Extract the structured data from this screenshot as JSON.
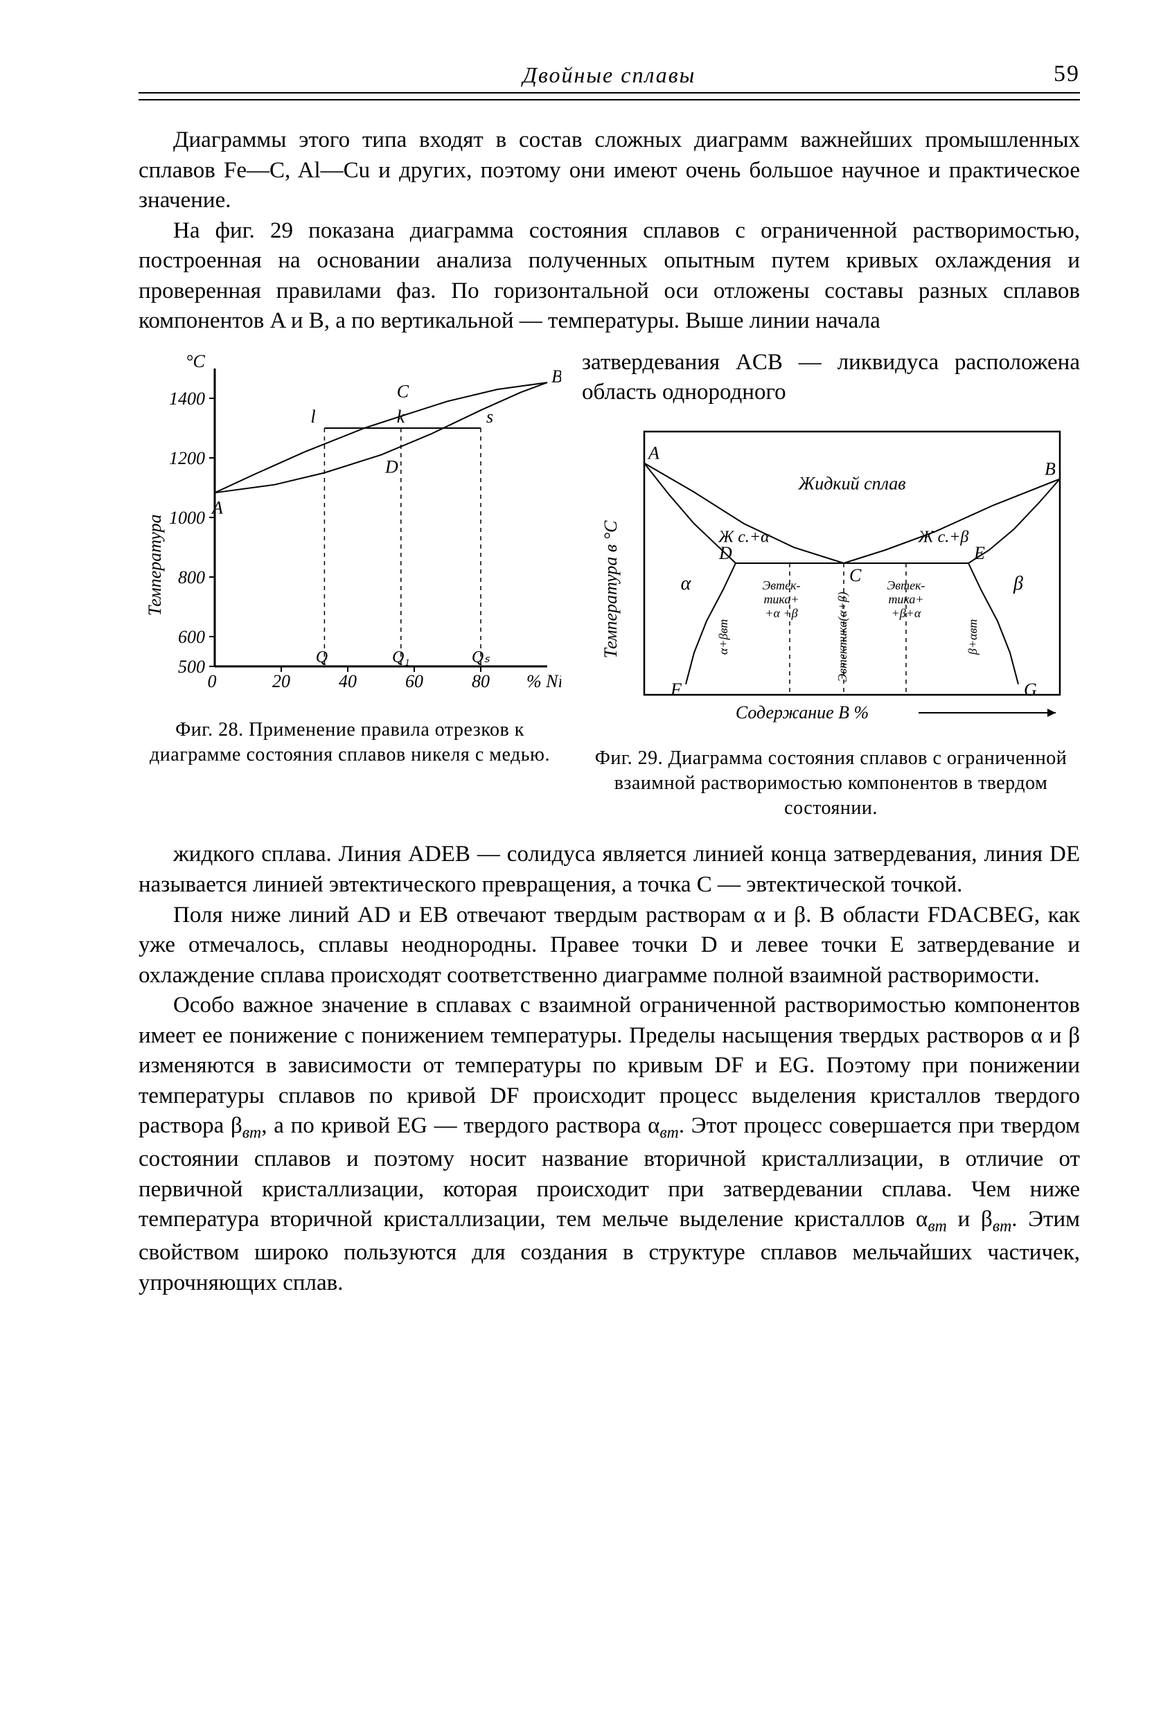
{
  "page": {
    "running_head": "Двойные сплавы",
    "number": "59"
  },
  "paragraphs": {
    "p1": "Диаграммы этого типа входят в состав сложных диаграмм важнейших промышленных сплавов Fe—C, Al—Cu и других, поэтому они имеют очень большое научное и практическое значение.",
    "p2": "На фиг. 29 показана диаграмма состояния сплавов с ограниченной растворимостью, построенная на основании анализа полученных опытным путем кривых охлаждения и проверенная правилами фаз. По горизонтальной оси отложены составы разных сплавов компонентов A и B, а по вертикальной — температуры. Выше линии начала",
    "side1": "затвердевания ACB — ликвидуса расположена область однородного",
    "p3a": "жидкого сплава. Линия ADEB — солидуса является линией конца затвердевания, линия DE называется линией эвтектического превращения, а точка C — эвтектической точкой.",
    "p3b": "Поля ниже линий AD и EB отвечают твердым растворам α и β. В области FDACBEG, как уже отмечалось, сплавы неоднородны. Правее точки D и левее точки E затвердевание и охлаждение сплава происходят соответственно диаграмме полной взаимной растворимости.",
    "p4_part1": "Особо важное значение в сплавах с взаимной ограниченной растворимостью компонентов имеет ее понижение с понижением температуры. Пределы насыщения твердых растворов α и β изменяются в зависимости от температуры по кривым DF и EG. Поэтому при понижении температуры сплавов по кривой DF происходит процесс выделения кристаллов твердого раствора β",
    "p4_part2": ", а по кривой EG — твердого раствора α",
    "p4_part3": ". Этот процесс совершается при твердом состоянии сплавов и поэтому носит название вторичной кристаллизации, в отличие от первичной кристаллизации, которая происходит при затвердевании сплава. Чем ниже температура вторичной кристаллизации, тем мельче выделение кристаллов α",
    "p4_part4": " и β",
    "p4_part5": ". Этим свойством широко пользуются для создания в структуре сплавов мельчайших частичек, упрочняющих сплав.",
    "sub_vt": "вт"
  },
  "fig28": {
    "caption": "Фиг. 28. Применение правила отрезков к диаграмме состояния сплавов никеля с медью.",
    "y_label": "Температура",
    "y_unit": "°C",
    "x_label": "% Ni",
    "y_ticks": [
      500,
      600,
      800,
      1000,
      1200,
      1400
    ],
    "x_ticks": [
      0,
      20,
      40,
      60,
      80
    ],
    "x_range": [
      0,
      100
    ],
    "y_range": [
      500,
      1500
    ],
    "liquidus": [
      [
        0,
        1083
      ],
      [
        12,
        1145
      ],
      [
        27,
        1220
      ],
      [
        45,
        1300
      ],
      [
        56,
        1340
      ],
      [
        70,
        1390
      ],
      [
        85,
        1430
      ],
      [
        100,
        1453
      ]
    ],
    "solidus": [
      [
        0,
        1083
      ],
      [
        18,
        1110
      ],
      [
        33,
        1150
      ],
      [
        50,
        1210
      ],
      [
        65,
        1280
      ],
      [
        80,
        1360
      ],
      [
        92,
        1420
      ],
      [
        100,
        1453
      ]
    ],
    "points": {
      "A": [
        0,
        1083
      ],
      "B": [
        100,
        1453
      ],
      "C": [
        56,
        1380
      ],
      "D": [
        50,
        1210
      ],
      "l": [
        33,
        1300
      ],
      "k": [
        56,
        1300
      ],
      "s": [
        80,
        1300
      ],
      "Q": [
        33,
        1300
      ],
      "Ql": [
        56,
        1300
      ],
      "Qs": [
        80,
        1300
      ]
    },
    "dash_x": [
      33,
      56,
      80
    ],
    "tie_y": 1300,
    "colors": {
      "axis": "#000000",
      "curve": "#000000"
    },
    "stroke_width": 2
  },
  "fig29": {
    "caption": "Фиг. 29. Диаграмма состояния сплавов с ограниченной взаимной растворимостью компонентов в твердом состоянии.",
    "y_label": "Температура в °C",
    "x_label": "Содержание B  %",
    "labels": {
      "liquid": "Жидкий сплав",
      "zhc_a": "Ж с.+α",
      "zhc_b": "Ж с.+β",
      "alpha": "α",
      "beta": "β",
      "evt_left_1": "Эвтек-",
      "evt_left_2": "тика+",
      "evt_left_3": "+α +β",
      "evt_right_1": "Эвтек-",
      "evt_right_2": "тика+",
      "evt_right_3": "+β+α",
      "evt_center": "Эвтектика(α+β)",
      "ab_left": "α+β",
      "ab_right": "β+α",
      "sub_vt": "вт"
    },
    "x_range": [
      0,
      100
    ],
    "y_range": [
      0,
      100
    ],
    "A": [
      0,
      88
    ],
    "B": [
      100,
      82
    ],
    "C": [
      48,
      50
    ],
    "D": [
      22,
      50
    ],
    "E": [
      78,
      50
    ],
    "F": [
      10,
      4
    ],
    "G": [
      90,
      4
    ],
    "left_liq": [
      [
        0,
        88
      ],
      [
        12,
        77
      ],
      [
        24,
        65
      ],
      [
        36,
        56
      ],
      [
        48,
        50
      ]
    ],
    "right_liq": [
      [
        48,
        50
      ],
      [
        58,
        55
      ],
      [
        70,
        62
      ],
      [
        84,
        72
      ],
      [
        100,
        82
      ]
    ],
    "AD": [
      [
        0,
        88
      ],
      [
        6,
        76
      ],
      [
        12,
        65
      ],
      [
        18,
        56
      ],
      [
        22,
        50
      ]
    ],
    "BE": [
      [
        100,
        82
      ],
      [
        95,
        73
      ],
      [
        89,
        63
      ],
      [
        83,
        55
      ],
      [
        78,
        50
      ]
    ],
    "DF": [
      [
        22,
        50
      ],
      [
        19,
        40
      ],
      [
        15,
        28
      ],
      [
        12,
        16
      ],
      [
        10,
        4
      ]
    ],
    "EG": [
      [
        78,
        50
      ],
      [
        81,
        40
      ],
      [
        85,
        28
      ],
      [
        88,
        16
      ],
      [
        90,
        4
      ]
    ],
    "DE_y": 50,
    "dash_x": [
      35,
      48,
      63
    ],
    "colors": {
      "axis": "#000000",
      "curve": "#000000"
    },
    "stroke_width": 2
  }
}
